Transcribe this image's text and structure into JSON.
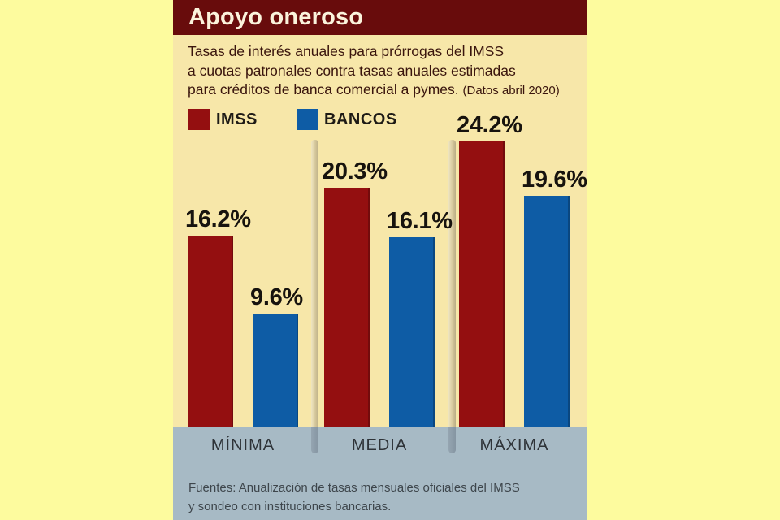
{
  "page": {
    "bg": "#FDFB9E"
  },
  "panel": {
    "bg": "#F7E7A9"
  },
  "header": {
    "title": "Apoyo oneroso",
    "bg": "#680C0C",
    "text_color": "#FBF3DC"
  },
  "subtitle": {
    "lines": [
      "Tasas de interés anuales para prórrogas del IMSS",
      "a cuotas patronales contra tasas anuales estimadas",
      "para créditos de banca comercial a pymes."
    ],
    "note": "(Datos abril 2020)"
  },
  "band": {
    "bg": "#A7BAC5"
  },
  "chart_data": {
    "type": "bar",
    "categories": [
      "MÍNIMA",
      "MEDIA",
      "MÁXIMA"
    ],
    "series": [
      {
        "name": "IMSS",
        "color": "#940F10",
        "values": [
          16.2,
          20.3,
          24.2
        ]
      },
      {
        "name": "BANCOS",
        "color": "#0E5CA5",
        "values": [
          9.6,
          16.1,
          19.6
        ]
      }
    ],
    "value_suffix": "%",
    "title": "Apoyo oneroso",
    "xlabel": "",
    "ylabel": "",
    "ylim": [
      0,
      25
    ],
    "grid": false,
    "legend_position": "top",
    "value_labels": "above-bars"
  },
  "footer": {
    "lines": [
      "Fuentes: Anualización de tasas mensuales oficiales del IMSS",
      "y sondeo con instituciones bancarias."
    ]
  }
}
